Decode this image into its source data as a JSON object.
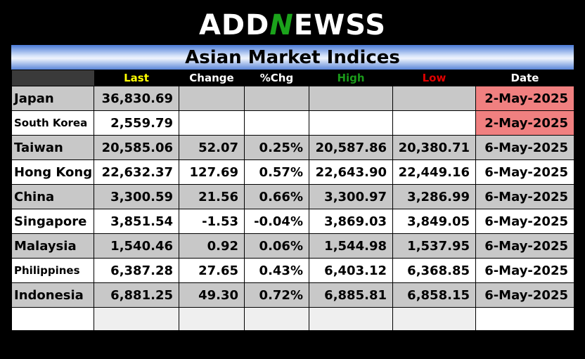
{
  "logo": {
    "part1": "ADD",
    "part2": "N",
    "part3": "EWSS"
  },
  "title": "Asian Market Indices",
  "columns": {
    "last": "Last",
    "change": "Change",
    "pct": "%Chg",
    "high": "High",
    "low": "Low",
    "date": "Date"
  },
  "column_colors": {
    "last": "#ffff00",
    "change": "#ffffff",
    "pct": "#ffffff",
    "high": "#1a9a1a",
    "low": "#e00000",
    "date": "#ffffff"
  },
  "rows": [
    {
      "country": "Japan",
      "last": "36,830.69",
      "change": "",
      "pct": "",
      "high": "",
      "low": "",
      "date": "2-May-2025",
      "direction": "none",
      "stale": true
    },
    {
      "country": "South Korea",
      "last": "2,559.79",
      "change": "",
      "pct": "",
      "high": "",
      "low": "",
      "date": "2-May-2025",
      "direction": "none",
      "stale": true
    },
    {
      "country": "Taiwan",
      "last": "20,585.06",
      "change": "52.07",
      "pct": "0.25%",
      "high": "20,587.86",
      "low": "20,380.71",
      "date": "6-May-2025",
      "direction": "up",
      "stale": false
    },
    {
      "country": "Hong Kong",
      "last": "22,632.37",
      "change": "127.69",
      "pct": "0.57%",
      "high": "22,643.90",
      "low": "22,449.16",
      "date": "6-May-2025",
      "direction": "up",
      "stale": false
    },
    {
      "country": "China",
      "last": "3,300.59",
      "change": "21.56",
      "pct": "0.66%",
      "high": "3,300.97",
      "low": "3,286.99",
      "date": "6-May-2025",
      "direction": "up",
      "stale": false
    },
    {
      "country": "Singapore",
      "last": "3,851.54",
      "change": "-1.53",
      "pct": "-0.04%",
      "high": "3,869.03",
      "low": "3,849.05",
      "date": "6-May-2025",
      "direction": "down",
      "stale": false
    },
    {
      "country": "Malaysia",
      "last": "1,540.46",
      "change": "0.92",
      "pct": "0.06%",
      "high": "1,544.98",
      "low": "1,537.95",
      "date": "6-May-2025",
      "direction": "up",
      "stale": false
    },
    {
      "country": "Philippines",
      "last": "6,387.28",
      "change": "27.65",
      "pct": "0.43%",
      "high": "6,403.12",
      "low": "6,368.85",
      "date": "6-May-2025",
      "direction": "up",
      "stale": false
    },
    {
      "country": "Indonesia",
      "last": "6,881.25",
      "change": "49.30",
      "pct": "0.72%",
      "high": "6,885.81",
      "low": "6,858.15",
      "date": "6-May-2025",
      "direction": "up",
      "stale": false
    }
  ],
  "colors": {
    "positive": "#1a8a1a",
    "negative": "#e00000",
    "stale_date_bg": "#f08080",
    "shaded_row": "#c8c8c8",
    "banner_blue": "#4a7ad6"
  }
}
